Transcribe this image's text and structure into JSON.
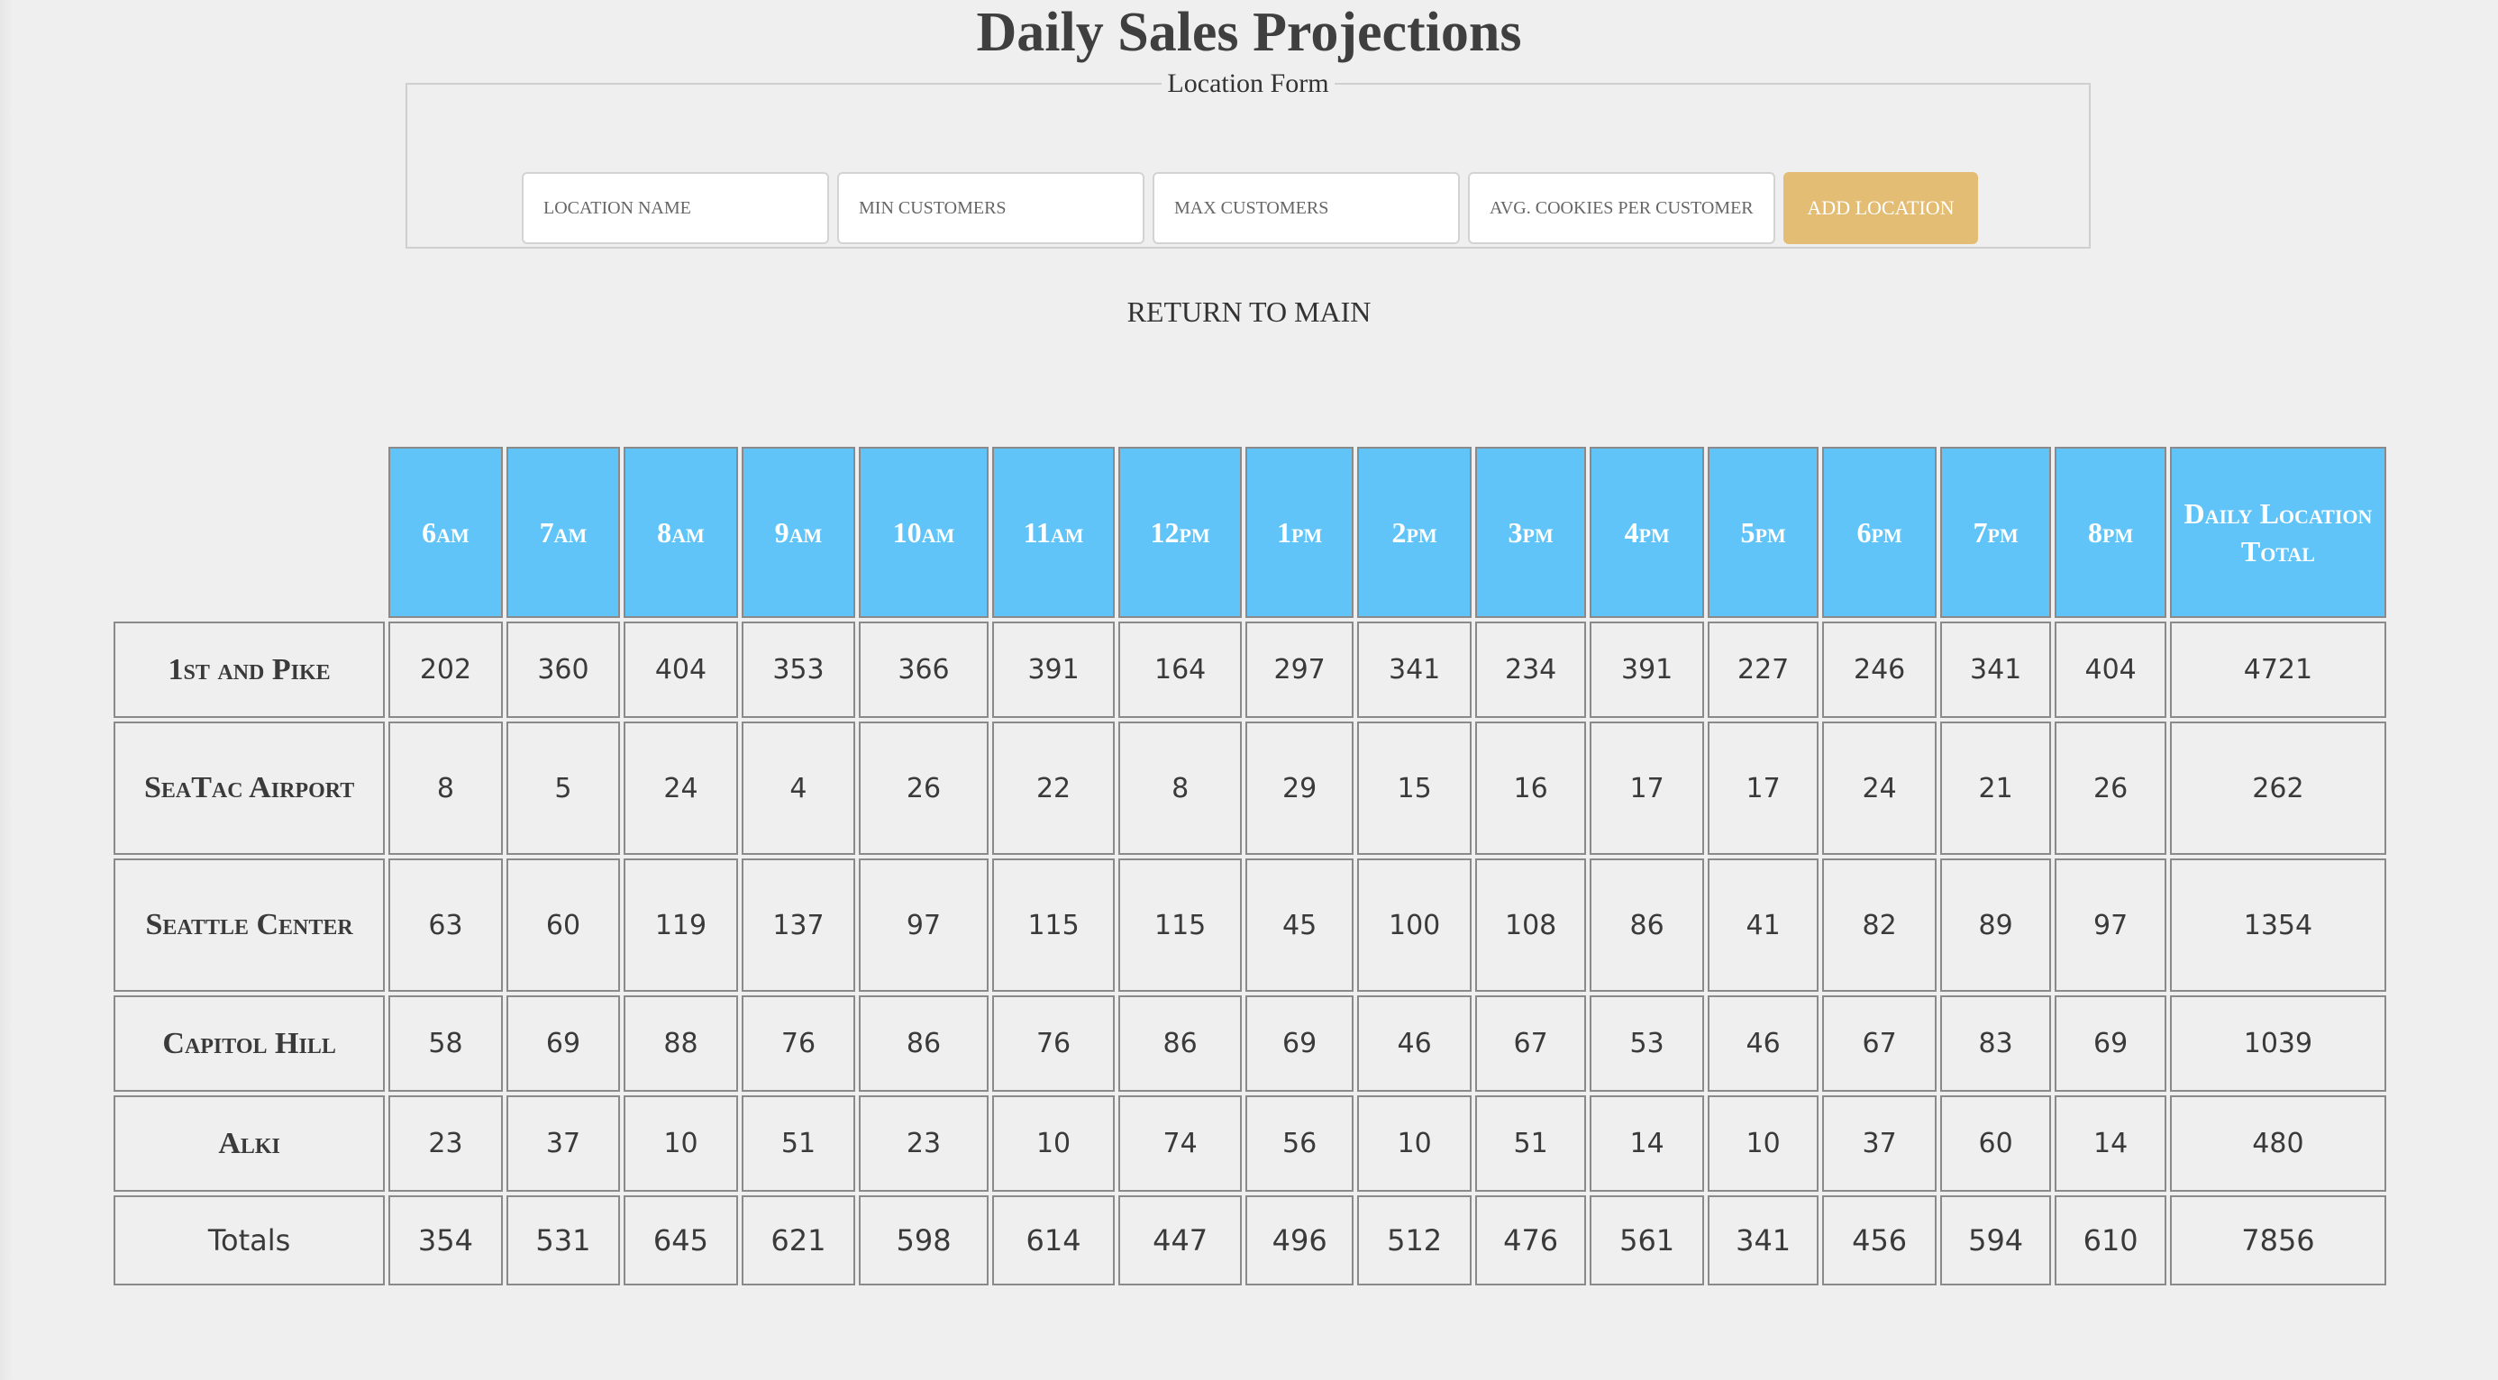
{
  "page": {
    "title": "Daily Sales Projections"
  },
  "form": {
    "legend": "Location Form",
    "location_name_placeholder": "LOCATION NAME",
    "min_customers_placeholder": "MIN CUSTOMERS",
    "max_customers_placeholder": "MAX CUSTOMERS",
    "avg_cookies_placeholder": "AVG. COOKIES PER CUSTOMER",
    "submit_label": "ADD LOCATION"
  },
  "nav": {
    "return_label": "RETURN TO MAIN"
  },
  "table": {
    "hours": [
      "6am",
      "7am",
      "8am",
      "9am",
      "10am",
      "11am",
      "12pm",
      "1pm",
      "2pm",
      "3pm",
      "4pm",
      "5pm",
      "6pm",
      "7pm",
      "8pm"
    ],
    "total_header": "Daily Location Total",
    "rows": [
      {
        "location": "1st and Pike",
        "values": [
          "202",
          "360",
          "404",
          "353",
          "366",
          "391",
          "164",
          "297",
          "341",
          "234",
          "391",
          "227",
          "246",
          "341",
          "404"
        ],
        "total": "4721"
      },
      {
        "location": "SeaTac Airport",
        "values": [
          "8",
          "5",
          "24",
          "4",
          "26",
          "22",
          "8",
          "29",
          "15",
          "16",
          "17",
          "17",
          "24",
          "21",
          "26"
        ],
        "total": "262"
      },
      {
        "location": "Seattle Center",
        "values": [
          "63",
          "60",
          "119",
          "137",
          "97",
          "115",
          "115",
          "45",
          "100",
          "108",
          "86",
          "41",
          "82",
          "89",
          "97"
        ],
        "total": "1354"
      },
      {
        "location": "Capitol Hill",
        "values": [
          "58",
          "69",
          "88",
          "76",
          "86",
          "76",
          "86",
          "69",
          "46",
          "67",
          "53",
          "46",
          "67",
          "83",
          "69"
        ],
        "total": "1039"
      },
      {
        "location": "Alki",
        "values": [
          "23",
          "37",
          "10",
          "51",
          "23",
          "10",
          "74",
          "56",
          "10",
          "51",
          "14",
          "10",
          "37",
          "60",
          "14"
        ],
        "total": "480"
      }
    ],
    "totals": {
      "label": "Totals",
      "values": [
        "354",
        "531",
        "645",
        "621",
        "598",
        "614",
        "447",
        "496",
        "512",
        "476",
        "561",
        "341",
        "456",
        "594",
        "610"
      ],
      "grand_total": "7856"
    }
  }
}
